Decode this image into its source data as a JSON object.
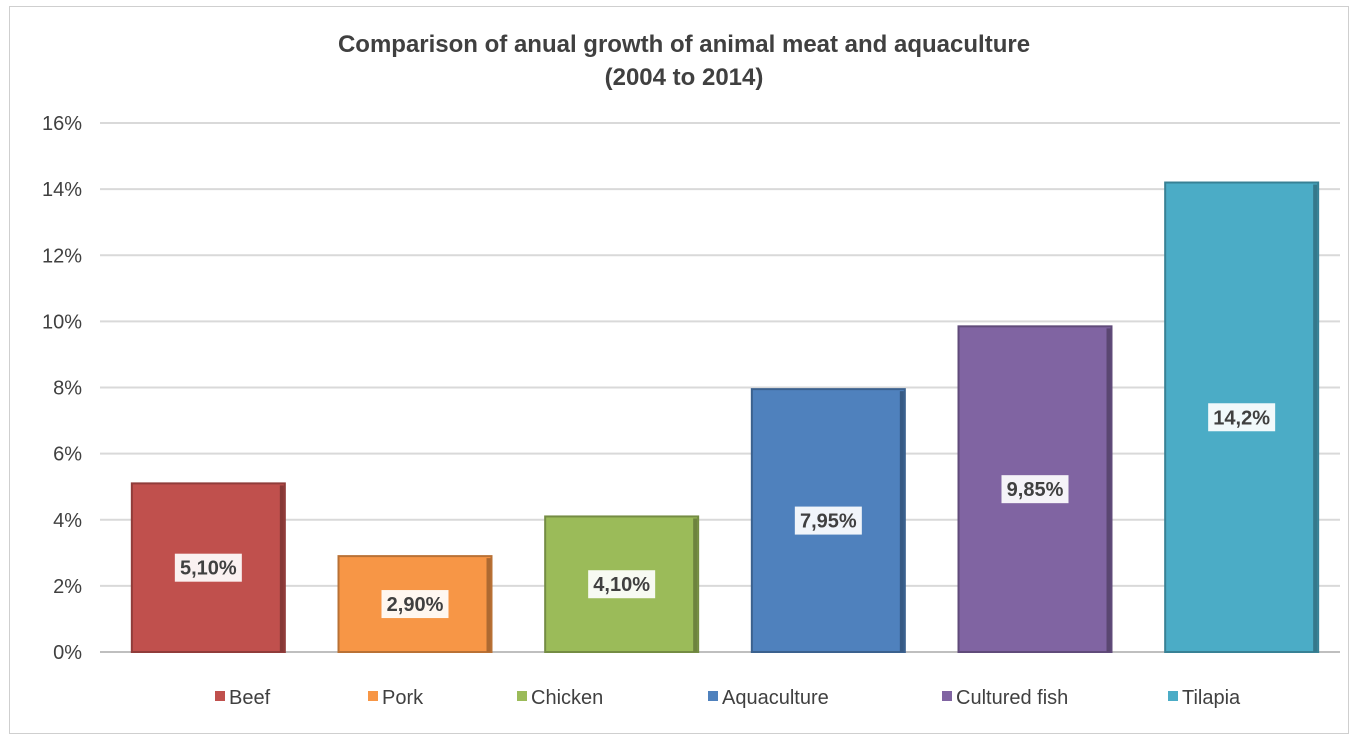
{
  "chart_data": {
    "type": "bar",
    "title": "Comparison of anual growth of animal meat and aquaculture",
    "subtitle": "(2004 to 2014)",
    "categories": [
      "Beef",
      "Pork",
      "Chicken",
      "Aquaculture",
      "Cultured fish",
      "Tilapia"
    ],
    "values": [
      5.1,
      2.9,
      4.1,
      7.95,
      9.85,
      14.2
    ],
    "data_labels": [
      "5,10%",
      "2,90%",
      "4,10%",
      "7,95%",
      "9,85%",
      "14,2%"
    ],
    "colors": [
      "#c0504d",
      "#f79646",
      "#9bbb59",
      "#4f81bd",
      "#8064a2",
      "#4bacc6"
    ],
    "ylim": [
      0,
      16
    ],
    "y_ticks": [
      0,
      2,
      4,
      6,
      8,
      10,
      12,
      14,
      16
    ],
    "y_tick_labels": [
      "0%",
      "2%",
      "4%",
      "6%",
      "8%",
      "10%",
      "12%",
      "14%",
      "16%"
    ],
    "grid": true,
    "legend_position": "bottom",
    "xlabel": "",
    "ylabel": ""
  }
}
